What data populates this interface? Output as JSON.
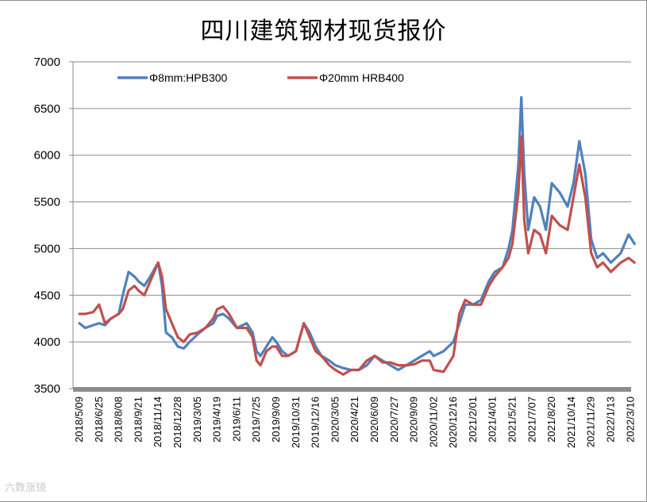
{
  "chart_data": {
    "type": "line",
    "title": "四川建筑钢材现货报价",
    "xlabel": "",
    "ylabel": "",
    "ylim": [
      3500,
      7000
    ],
    "yticks": [
      3500,
      4000,
      4500,
      5000,
      5500,
      6000,
      6500,
      7000
    ],
    "grid": true,
    "legend_position": "top-left",
    "categories": [
      "2018/5/09",
      "2018/6/25",
      "2018/8/08",
      "2018/9/21",
      "2018/11/14",
      "2018/12/28",
      "2019/3/05",
      "2019/4/19",
      "2019/6/11",
      "2019/7/25",
      "2019/9/09",
      "2019/10/31",
      "2019/12/16",
      "2020/3/05",
      "2020/4/21",
      "2020/6/09",
      "2020/7/27",
      "2020/9/09",
      "2020/11/02",
      "2020/12/16",
      "2021/2/01",
      "2021/4/01",
      "2021/5/21",
      "2021/7/07",
      "2021/8/20",
      "2021/10/14",
      "2021/11/29",
      "2022/1/13",
      "2022/3/10"
    ],
    "series": [
      {
        "name": "Φ8mm:HPB300",
        "color": "#4f81bd",
        "points": [
          [
            0,
            4200
          ],
          [
            0.3,
            4150
          ],
          [
            0.7,
            4180
          ],
          [
            1,
            4200
          ],
          [
            1.3,
            4180
          ],
          [
            1.6,
            4250
          ],
          [
            2,
            4300
          ],
          [
            2.2,
            4500
          ],
          [
            2.5,
            4750
          ],
          [
            2.8,
            4700
          ],
          [
            3,
            4650
          ],
          [
            3.3,
            4600
          ],
          [
            3.6,
            4700
          ],
          [
            4,
            4850
          ],
          [
            4.2,
            4600
          ],
          [
            4.4,
            4100
          ],
          [
            4.7,
            4050
          ],
          [
            5,
            3950
          ],
          [
            5.3,
            3930
          ],
          [
            5.6,
            4000
          ],
          [
            6,
            4080
          ],
          [
            6.4,
            4150
          ],
          [
            6.8,
            4200
          ],
          [
            7,
            4280
          ],
          [
            7.3,
            4300
          ],
          [
            7.6,
            4250
          ],
          [
            8,
            4150
          ],
          [
            8.5,
            4200
          ],
          [
            8.8,
            4100
          ],
          [
            9,
            3900
          ],
          [
            9.2,
            3850
          ],
          [
            9.5,
            3950
          ],
          [
            9.8,
            4050
          ],
          [
            10,
            4000
          ],
          [
            10.3,
            3900
          ],
          [
            10.6,
            3850
          ],
          [
            11,
            3900
          ],
          [
            11.4,
            4200
          ],
          [
            11.7,
            4100
          ],
          [
            12,
            3950
          ],
          [
            12.3,
            3850
          ],
          [
            12.7,
            3800
          ],
          [
            13,
            3750
          ],
          [
            13.4,
            3720
          ],
          [
            13.8,
            3700
          ],
          [
            14.2,
            3700
          ],
          [
            14.6,
            3750
          ],
          [
            15,
            3850
          ],
          [
            15.4,
            3800
          ],
          [
            15.8,
            3750
          ],
          [
            16.2,
            3700
          ],
          [
            16.6,
            3750
          ],
          [
            17,
            3800
          ],
          [
            17.4,
            3850
          ],
          [
            17.8,
            3900
          ],
          [
            18,
            3850
          ],
          [
            18.5,
            3900
          ],
          [
            19,
            4000
          ],
          [
            19.3,
            4200
          ],
          [
            19.6,
            4400
          ],
          [
            20,
            4400
          ],
          [
            20.4,
            4450
          ],
          [
            20.8,
            4650
          ],
          [
            21.1,
            4750
          ],
          [
            21.5,
            4800
          ],
          [
            21.8,
            5000
          ],
          [
            22,
            5200
          ],
          [
            22.3,
            5900
          ],
          [
            22.45,
            6620
          ],
          [
            22.6,
            5800
          ],
          [
            22.8,
            5200
          ],
          [
            23.1,
            5550
          ],
          [
            23.4,
            5450
          ],
          [
            23.7,
            5200
          ],
          [
            24,
            5700
          ],
          [
            24.4,
            5600
          ],
          [
            24.8,
            5450
          ],
          [
            25.1,
            5700
          ],
          [
            25.4,
            6150
          ],
          [
            25.7,
            5800
          ],
          [
            26,
            5100
          ],
          [
            26.3,
            4900
          ],
          [
            26.6,
            4950
          ],
          [
            27,
            4850
          ],
          [
            27.5,
            4950
          ],
          [
            27.9,
            5150
          ],
          [
            28.2,
            5050
          ]
        ]
      },
      {
        "name": "Φ20mm HRB400",
        "color": "#c0504d",
        "points": [
          [
            0,
            4300
          ],
          [
            0.3,
            4300
          ],
          [
            0.7,
            4320
          ],
          [
            1,
            4400
          ],
          [
            1.3,
            4200
          ],
          [
            1.6,
            4250
          ],
          [
            2,
            4300
          ],
          [
            2.2,
            4350
          ],
          [
            2.5,
            4550
          ],
          [
            2.8,
            4600
          ],
          [
            3,
            4550
          ],
          [
            3.3,
            4500
          ],
          [
            3.6,
            4650
          ],
          [
            4,
            4850
          ],
          [
            4.2,
            4700
          ],
          [
            4.4,
            4350
          ],
          [
            4.7,
            4200
          ],
          [
            5,
            4050
          ],
          [
            5.3,
            4000
          ],
          [
            5.6,
            4080
          ],
          [
            6,
            4100
          ],
          [
            6.4,
            4150
          ],
          [
            6.8,
            4250
          ],
          [
            7,
            4350
          ],
          [
            7.3,
            4380
          ],
          [
            7.6,
            4300
          ],
          [
            8,
            4150
          ],
          [
            8.5,
            4150
          ],
          [
            8.8,
            4050
          ],
          [
            9,
            3800
          ],
          [
            9.2,
            3750
          ],
          [
            9.5,
            3900
          ],
          [
            9.8,
            3950
          ],
          [
            10,
            3950
          ],
          [
            10.3,
            3850
          ],
          [
            10.6,
            3850
          ],
          [
            11,
            3900
          ],
          [
            11.4,
            4200
          ],
          [
            11.7,
            4050
          ],
          [
            12,
            3900
          ],
          [
            12.3,
            3850
          ],
          [
            12.7,
            3750
          ],
          [
            13,
            3700
          ],
          [
            13.4,
            3650
          ],
          [
            13.8,
            3700
          ],
          [
            14.2,
            3700
          ],
          [
            14.6,
            3800
          ],
          [
            15,
            3850
          ],
          [
            15.4,
            3780
          ],
          [
            15.8,
            3780
          ],
          [
            16.2,
            3750
          ],
          [
            16.6,
            3750
          ],
          [
            17,
            3760
          ],
          [
            17.4,
            3800
          ],
          [
            17.8,
            3800
          ],
          [
            18,
            3700
          ],
          [
            18.5,
            3680
          ],
          [
            19,
            3850
          ],
          [
            19.3,
            4300
          ],
          [
            19.6,
            4450
          ],
          [
            20,
            4400
          ],
          [
            20.4,
            4400
          ],
          [
            20.8,
            4600
          ],
          [
            21.1,
            4700
          ],
          [
            21.5,
            4800
          ],
          [
            21.8,
            4900
          ],
          [
            22,
            5050
          ],
          [
            22.3,
            5600
          ],
          [
            22.45,
            6200
          ],
          [
            22.6,
            5300
          ],
          [
            22.8,
            4950
          ],
          [
            23.1,
            5200
          ],
          [
            23.4,
            5150
          ],
          [
            23.7,
            4950
          ],
          [
            24,
            5350
          ],
          [
            24.4,
            5250
          ],
          [
            24.8,
            5200
          ],
          [
            25.1,
            5550
          ],
          [
            25.4,
            5900
          ],
          [
            25.7,
            5550
          ],
          [
            26,
            4950
          ],
          [
            26.3,
            4800
          ],
          [
            26.6,
            4850
          ],
          [
            27,
            4750
          ],
          [
            27.5,
            4850
          ],
          [
            27.9,
            4900
          ],
          [
            28.2,
            4850
          ]
        ]
      }
    ]
  },
  "watermark": "六数涨镜"
}
